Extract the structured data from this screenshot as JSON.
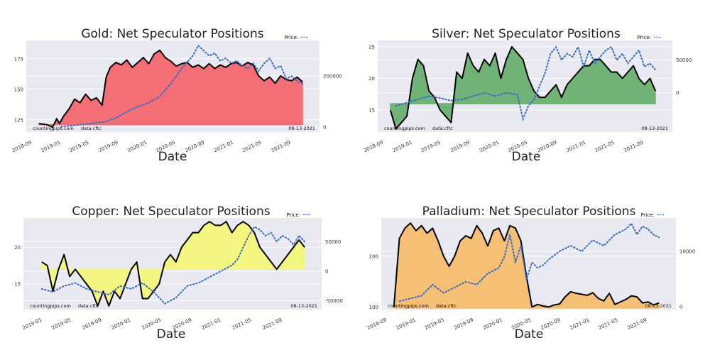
{
  "chart_data": [
    {
      "type": "area",
      "title": "Gold: Net Speculator Positions",
      "xlabel": "Date",
      "source_left": "countingpips.com",
      "source_mid": "data:cftc",
      "date_label": "08-13-2021",
      "legend_label": "Price:",
      "fill_color": "#f4686e",
      "price_color": "#3a6bc4",
      "xticks": [
        "2018-09",
        "2019-01",
        "2019-05",
        "2019-09",
        "2020-01",
        "2020-05",
        "2020-09",
        "2021-01",
        "2021-05",
        "2021-09"
      ],
      "xtick_pos": [
        0.0,
        0.101,
        0.2,
        0.302,
        0.403,
        0.502,
        0.604,
        0.705,
        0.804,
        0.905
      ],
      "ylim": [
        115,
        190
      ],
      "yticks": [
        125,
        150,
        175
      ],
      "y2lim": [
        -20000,
        340000
      ],
      "y2ticks": [
        0,
        200000
      ],
      "y2ticklabels": [
        "0",
        "200000"
      ],
      "baseline": 121,
      "series": [
        {
          "name": "positions",
          "axis": "left",
          "x": [
            0.02,
            0.05,
            0.07,
            0.085,
            0.095,
            0.11,
            0.13,
            0.15,
            0.17,
            0.19,
            0.21,
            0.23,
            0.25,
            0.265,
            0.28,
            0.3,
            0.32,
            0.34,
            0.36,
            0.38,
            0.4,
            0.42,
            0.44,
            0.46,
            0.48,
            0.5,
            0.52,
            0.54,
            0.56,
            0.58,
            0.6,
            0.62,
            0.64,
            0.66,
            0.68,
            0.7,
            0.72,
            0.74,
            0.76,
            0.78,
            0.8,
            0.82,
            0.84,
            0.86,
            0.88,
            0.9,
            0.92,
            0.94,
            0.96,
            0.98
          ],
          "values": [
            122,
            121,
            119,
            126,
            122,
            128,
            134,
            142,
            139,
            146,
            141,
            143,
            137,
            160,
            168,
            172,
            170,
            174,
            168,
            172,
            176,
            171,
            179,
            182,
            176,
            173,
            169,
            171,
            172,
            168,
            170,
            167,
            171,
            167,
            170,
            168,
            171,
            172,
            169,
            172,
            170,
            161,
            157,
            160,
            155,
            161,
            158,
            157,
            160,
            156
          ]
        },
        {
          "name": "price",
          "axis": "right",
          "x": [
            0.1,
            0.14,
            0.18,
            0.22,
            0.26,
            0.3,
            0.34,
            0.38,
            0.42,
            0.46,
            0.5,
            0.54,
            0.58,
            0.6,
            0.62,
            0.64,
            0.66,
            0.68,
            0.7,
            0.72,
            0.74,
            0.76,
            0.78,
            0.8,
            0.82,
            0.84,
            0.86,
            0.88,
            0.9,
            0.92,
            0.94,
            0.96,
            0.98
          ],
          "values": [
            1000,
            5000,
            10000,
            15000,
            20000,
            35000,
            60000,
            80000,
            95000,
            120000,
            170000,
            230000,
            280000,
            320000,
            300000,
            280000,
            290000,
            260000,
            270000,
            250000,
            260000,
            240000,
            230000,
            250000,
            220000,
            250000,
            270000,
            230000,
            240000,
            190000,
            200000,
            180000,
            170000
          ]
        }
      ]
    },
    {
      "type": "area",
      "title": "Silver: Net Speculator Positions",
      "xlabel": "Date",
      "source_left": "countingpips.com",
      "source_mid": "data:cftc",
      "date_label": "08-13-2021",
      "legend_label": "Price:",
      "fill_color": "#6ab06f",
      "price_color": "#3a6bc4",
      "xticks": [
        "2018-09",
        "2019-01",
        "2019-05",
        "2019-09",
        "2020-01",
        "2020-05",
        "2020-09",
        "2021-01",
        "2021-05",
        "2021-09"
      ],
      "xtick_pos": [
        0.0,
        0.101,
        0.2,
        0.302,
        0.403,
        0.502,
        0.604,
        0.705,
        0.804,
        0.905
      ],
      "ylim": [
        11.5,
        26
      ],
      "yticks": [
        15,
        20,
        25
      ],
      "y2lim": [
        -60000,
        80000
      ],
      "y2ticks": [
        0,
        50000
      ],
      "y2ticklabels": [
        "0",
        "50000"
      ],
      "baseline": 16,
      "series": [
        {
          "name": "positions",
          "axis": "left",
          "x": [
            0.02,
            0.04,
            0.06,
            0.08,
            0.1,
            0.12,
            0.14,
            0.16,
            0.18,
            0.2,
            0.22,
            0.24,
            0.26,
            0.28,
            0.3,
            0.32,
            0.34,
            0.36,
            0.38,
            0.4,
            0.42,
            0.44,
            0.46,
            0.48,
            0.5,
            0.52,
            0.54,
            0.56,
            0.58,
            0.6,
            0.62,
            0.64,
            0.66,
            0.68,
            0.7,
            0.72,
            0.74,
            0.76,
            0.78,
            0.8,
            0.82,
            0.84,
            0.86,
            0.88,
            0.9,
            0.92,
            0.94,
            0.96,
            0.98
          ],
          "values": [
            15,
            12,
            13,
            14,
            20,
            23,
            22,
            18,
            17,
            15,
            14,
            13,
            21,
            20,
            24,
            22,
            21,
            23,
            22,
            24,
            20,
            23,
            25,
            24,
            23,
            20,
            18,
            17,
            17,
            18,
            19,
            17,
            19,
            20,
            21,
            22,
            22,
            23,
            23,
            22,
            21,
            21,
            20,
            21,
            22,
            20,
            19,
            20,
            18
          ]
        },
        {
          "name": "price",
          "axis": "right",
          "x": [
            0.04,
            0.08,
            0.12,
            0.16,
            0.2,
            0.24,
            0.28,
            0.32,
            0.36,
            0.4,
            0.44,
            0.48,
            0.5,
            0.52,
            0.54,
            0.56,
            0.58,
            0.6,
            0.62,
            0.64,
            0.66,
            0.68,
            0.7,
            0.72,
            0.74,
            0.76,
            0.78,
            0.8,
            0.82,
            0.84,
            0.86,
            0.88,
            0.9,
            0.92,
            0.94,
            0.96,
            0.98
          ],
          "values": [
            -20000,
            -15000,
            -10000,
            -5000,
            -8000,
            -12000,
            -10000,
            -5000,
            0,
            -5000,
            0,
            -3000,
            -40000,
            -20000,
            -10000,
            10000,
            30000,
            60000,
            70000,
            50000,
            60000,
            55000,
            70000,
            40000,
            65000,
            45000,
            55000,
            65000,
            70000,
            50000,
            60000,
            45000,
            55000,
            65000,
            40000,
            45000,
            35000
          ]
        }
      ]
    },
    {
      "type": "area",
      "title": "Copper: Net Speculator Positions",
      "xlabel": "Date",
      "source_left": "countingpips.com",
      "source_mid": "data:cftc",
      "date_label": "08-13-2021",
      "legend_label": "Price:",
      "fill_color": "#f3f77a",
      "price_color": "#3a6bc4",
      "xticks": [
        "2019-01",
        "2019-05",
        "2019-09",
        "2020-01",
        "2020-05",
        "2020-09",
        "2021-01",
        "2021-05",
        "2021-09"
      ],
      "xtick_pos": [
        0.045,
        0.145,
        0.25,
        0.35,
        0.455,
        0.56,
        0.66,
        0.765,
        0.87
      ],
      "ylim": [
        11.5,
        24
      ],
      "yticks": [
        15,
        20
      ],
      "y2lim": [
        -65000,
        90000
      ],
      "y2ticks": [
        -50000,
        0,
        50000
      ],
      "y2ticklabels": [
        "-50000",
        "0",
        "50000"
      ],
      "baseline": 17,
      "series": [
        {
          "name": "positions",
          "axis": "left",
          "x": [
            0.04,
            0.06,
            0.08,
            0.1,
            0.12,
            0.14,
            0.16,
            0.18,
            0.2,
            0.22,
            0.24,
            0.26,
            0.28,
            0.3,
            0.32,
            0.34,
            0.36,
            0.38,
            0.4,
            0.42,
            0.44,
            0.46,
            0.48,
            0.5,
            0.52,
            0.54,
            0.56,
            0.58,
            0.6,
            0.62,
            0.64,
            0.66,
            0.68,
            0.7,
            0.72,
            0.74,
            0.76,
            0.78,
            0.8,
            0.82,
            0.84,
            0.86,
            0.88,
            0.9,
            0.92,
            0.94,
            0.96,
            0.98
          ],
          "values": [
            18,
            17.5,
            14,
            17,
            19,
            16,
            17,
            16,
            15,
            14,
            12,
            14,
            12,
            14,
            13,
            15,
            17,
            18,
            13,
            13,
            14,
            15,
            18,
            19,
            18,
            20,
            21,
            22,
            22,
            23,
            23.5,
            23,
            23,
            23.5,
            22,
            23,
            23.5,
            23,
            22,
            20,
            19,
            18,
            17,
            18,
            19,
            20,
            21,
            20
          ]
        },
        {
          "name": "price",
          "axis": "right",
          "x": [
            0.04,
            0.08,
            0.12,
            0.16,
            0.2,
            0.24,
            0.28,
            0.32,
            0.36,
            0.4,
            0.44,
            0.48,
            0.5,
            0.52,
            0.56,
            0.6,
            0.64,
            0.68,
            0.72,
            0.74,
            0.76,
            0.78,
            0.8,
            0.82,
            0.84,
            0.86,
            0.88,
            0.9,
            0.92,
            0.94,
            0.96,
            0.98
          ],
          "values": [
            -30000,
            -35000,
            -25000,
            -20000,
            -30000,
            -35000,
            -40000,
            -25000,
            -30000,
            -20000,
            -35000,
            -55000,
            -50000,
            -45000,
            -25000,
            -20000,
            -10000,
            0,
            10000,
            20000,
            40000,
            60000,
            75000,
            70000,
            60000,
            65000,
            50000,
            60000,
            55000,
            45000,
            60000,
            50000
          ]
        }
      ]
    },
    {
      "type": "area",
      "title": "Palladium: Net Speculator Positions",
      "xlabel": "Date",
      "source_left": "countingpips.com",
      "source_mid": "data:cftc",
      "date_label": "08-13-2021",
      "legend_label": "Price:",
      "fill_color": "#f5bd6e",
      "price_color": "#3a6bc4",
      "xticks": [
        "2018-09",
        "2019-01",
        "2019-05",
        "2019-09",
        "2020-01",
        "2020-05",
        "2020-09",
        "2021-01",
        "2021-05",
        "2021-09"
      ],
      "xtick_pos": [
        0.0,
        0.101,
        0.2,
        0.302,
        0.403,
        0.502,
        0.604,
        0.705,
        0.804,
        0.905
      ],
      "ylim": [
        95,
        275
      ],
      "yticks": [
        100,
        200
      ],
      "y2lim": [
        -500,
        16000
      ],
      "y2ticks": [
        0,
        10000
      ],
      "y2ticklabels": [
        "0",
        "10000"
      ],
      "baseline": 98,
      "series": [
        {
          "name": "positions",
          "axis": "left",
          "x": [
            0.02,
            0.04,
            0.06,
            0.08,
            0.1,
            0.12,
            0.14,
            0.16,
            0.18,
            0.2,
            0.22,
            0.24,
            0.26,
            0.28,
            0.3,
            0.32,
            0.34,
            0.36,
            0.38,
            0.4,
            0.42,
            0.44,
            0.46,
            0.48,
            0.5,
            0.52,
            0.54,
            0.56,
            0.58,
            0.6,
            0.62,
            0.64,
            0.66,
            0.68,
            0.7,
            0.72,
            0.74,
            0.76,
            0.78,
            0.8,
            0.82,
            0.84,
            0.86,
            0.88,
            0.9,
            0.92,
            0.94,
            0.96,
            0.98
          ],
          "values": [
            100,
            235,
            255,
            265,
            250,
            260,
            245,
            255,
            230,
            200,
            180,
            200,
            230,
            240,
            235,
            260,
            245,
            220,
            250,
            255,
            230,
            260,
            255,
            230,
            160,
            100,
            105,
            102,
            100,
            104,
            106,
            120,
            130,
            127,
            125,
            123,
            128,
            117,
            112,
            127,
            105,
            110,
            115,
            122,
            120,
            108,
            110,
            104,
            108
          ]
        },
        {
          "name": "price",
          "axis": "right",
          "x": [
            0.04,
            0.08,
            0.12,
            0.16,
            0.2,
            0.24,
            0.28,
            0.32,
            0.36,
            0.4,
            0.42,
            0.44,
            0.46,
            0.48,
            0.5,
            0.52,
            0.54,
            0.56,
            0.58,
            0.62,
            0.66,
            0.7,
            0.74,
            0.78,
            0.82,
            0.86,
            0.88,
            0.9,
            0.92,
            0.94,
            0.96,
            0.98
          ],
          "values": [
            1000,
            1500,
            2000,
            4000,
            2500,
            3500,
            4500,
            4000,
            6000,
            7000,
            9000,
            13000,
            8000,
            11000,
            5000,
            8000,
            7000,
            7500,
            8500,
            10000,
            11000,
            10000,
            12000,
            11000,
            13000,
            14000,
            15000,
            13000,
            14500,
            14000,
            13000,
            12500
          ]
        }
      ]
    }
  ]
}
